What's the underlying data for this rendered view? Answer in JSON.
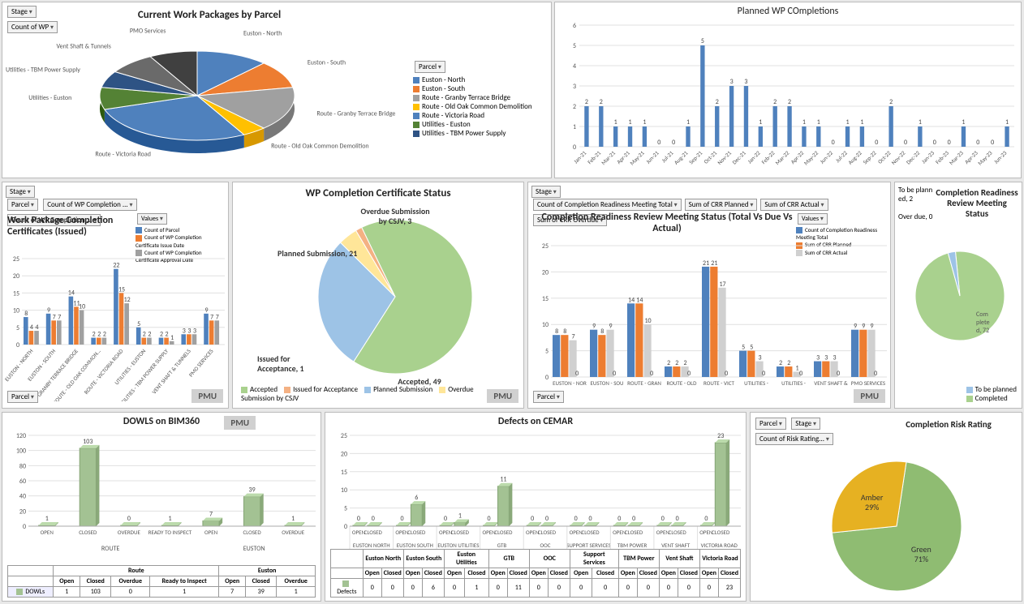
{
  "filters": {
    "stage": "Stage",
    "count_wp": "Count of  WP",
    "parcel": "Parcel",
    "values": "Values",
    "count_compl": "Count of  WP Completion ...",
    "count_risk": "Count of  Risk Rating..."
  },
  "colors": {
    "blue": "#4f81bd",
    "orange": "#ed7d31",
    "gray": "#808080",
    "yellow": "#ffc000",
    "darkblue": "#2e5384",
    "green": "#70ad47",
    "teal": "#255e91",
    "ltgreen": "#a3c293",
    "pie_green": "#a9d18e",
    "pie_blue": "#9dc3e6",
    "pie_orange": "#f4b183",
    "pie_yellow": "#ffe699",
    "amber": "#e6b122",
    "risk_green": "#8fbc72"
  },
  "parcel_pie": {
    "title": "Current Work Packages by Parcel",
    "slices": [
      {
        "label": "Euston - North",
        "color": "#4f81bd",
        "value": 12
      },
      {
        "label": "Euston - South",
        "color": "#ed7d31",
        "value": 10
      },
      {
        "label": "Route - Granby Terrace Bridge",
        "color": "#a0a0a0",
        "value": 16
      },
      {
        "label": "Route - Old Oak Common Demolition",
        "color": "#ffc000",
        "value": 4
      },
      {
        "label": "Route - Victoria Road",
        "color": "#4f81bd",
        "value": 28
      },
      {
        "label": "Utilities - Euston",
        "color": "#548235",
        "value": 8
      },
      {
        "label": "Utilities - TBM Power Supply",
        "color": "#2e5384",
        "value": 6
      },
      {
        "label": "Vent Shaft & Tunnels",
        "color": "#6a6a6a",
        "value": 8
      },
      {
        "label": "PMO Services",
        "color": "#404040",
        "value": 8
      }
    ]
  },
  "planned_wp": {
    "title": "Planned WP COmpletions",
    "ylim": [
      0,
      6
    ],
    "ytick": 1,
    "x": [
      "Jan-21",
      "Feb-21",
      "Mar-21",
      "Apr-21",
      "May-21",
      "Jun-21",
      "Jul-21",
      "Aug-21",
      "Sep-21",
      "Oct-21",
      "Nov-21",
      "Dec-21",
      "Jan-22",
      "Feb-22",
      "Mar-22",
      "Apr-22",
      "May-22",
      "Jun-22",
      "Jul-22",
      "Aug-22",
      "Sep-22",
      "Oct-22",
      "Nov-22",
      "Dec-22",
      "Jan-23",
      "Feb-23",
      "Mar-23",
      "Apr-23",
      "May-23",
      "Jun-23"
    ],
    "y": [
      2,
      2,
      1,
      1,
      1,
      0,
      0,
      1,
      5,
      2,
      3,
      3,
      1,
      2,
      2,
      1,
      1,
      0,
      1,
      1,
      0,
      2,
      0,
      1,
      0,
      0,
      1,
      0,
      0,
      1
    ]
  },
  "wpcc_issued": {
    "title": "Work Package Completion Certificates (Issued)",
    "legend": [
      "Count of Parcel",
      "Count of WP Completion Certificate Issue Date",
      "Count of WP Completion Certificate  Approval Date"
    ],
    "legend_colors": [
      "#4f81bd",
      "#ed7d31",
      "#a0a0a0"
    ],
    "ylim": [
      0,
      25
    ],
    "ytick": 5,
    "categories": [
      "EUSTON - NORTH",
      "EUSTON - SOUTH",
      "ROUTE - GRANBY TERRACE BRIDGE",
      "ROUTE - OLD OAK COMMON…",
      "ROUTE - VICTORIA ROAD",
      "UTILITIES - EUSTON",
      "UTILITIES - TBM POWER SUPPLY",
      "VENT SHAFT & TUNNELS",
      "PMO SERVICES"
    ],
    "series": [
      [
        8,
        4,
        4
      ],
      [
        9,
        7,
        7
      ],
      [
        14,
        11,
        10
      ],
      [
        2,
        2,
        2
      ],
      [
        22,
        15,
        12
      ],
      [
        5,
        2,
        2
      ],
      [
        2,
        2,
        1
      ],
      [
        3,
        3,
        3
      ],
      [
        9,
        7,
        7
      ]
    ]
  },
  "wp_cert_status": {
    "title": "WP Completion Certificate Status",
    "legend": [
      "Accepted",
      "Issued for Acceptance",
      "Planned Submission",
      "Overdue Submission by CSJV"
    ],
    "legend_colors": [
      "#a9d18e",
      "#f4b183",
      "#9dc3e6",
      "#ffe699"
    ],
    "slices": [
      {
        "label": "Accepted, 49",
        "value": 49,
        "color": "#a9d18e"
      },
      {
        "label": "Planned Submission, 21",
        "value": 21,
        "color": "#9dc3e6"
      },
      {
        "label": "Overdue Submission by CSJV, 3",
        "value": 3,
        "color": "#ffe699"
      },
      {
        "label": "Issued for Acceptance, 1",
        "value": 1,
        "color": "#f4b183"
      }
    ]
  },
  "crr_meeting": {
    "title": "Completion Readiness Review Meeting Status (Total Vs Due Vs Actual)",
    "filters": [
      "Count of  Completion Readiness Meeting Total",
      "Sum of  CRR Planned",
      "Sum of  CRR Actual",
      "Sum of  CRR Overdue"
    ],
    "legend": [
      "Count of Completion Readiness Meeting Total",
      "Sum of CRR Planned",
      "Sum of CRR Actual"
    ],
    "legend_colors": [
      "#4f81bd",
      "#ed7d31",
      "#d0d0d0"
    ],
    "ylim": [
      0,
      25
    ],
    "ytick": 5,
    "categories": [
      "EUSTON - NORTH",
      "EUSTON - SOUTH",
      "ROUTE - GRANBY TERRACE BRIDGE",
      "ROUTE - OLD OAK COMMON DEMOLITION",
      "ROUTE - VICTORIA ROAD",
      "UTILITIES - EUSTON",
      "UTILITIES - TBM POWER SUPPLY",
      "VENT SHAFT & TUNNELS",
      "PMO SERVICES"
    ],
    "series": [
      [
        8,
        8,
        7,
        0
      ],
      [
        9,
        8,
        9,
        0
      ],
      [
        14,
        14,
        10,
        0
      ],
      [
        2,
        2,
        2,
        0
      ],
      [
        21,
        21,
        17,
        0
      ],
      [
        5,
        5,
        3,
        0
      ],
      [
        2,
        2,
        1,
        0
      ],
      [
        3,
        3,
        3,
        0
      ],
      [
        9,
        9,
        9,
        0
      ]
    ]
  },
  "crr_pie": {
    "title": "Completion Readiness Review Meeting Status",
    "slices": [
      {
        "label": "Completed, 72",
        "value": 72,
        "color": "#a9d18e"
      },
      {
        "label": "To be planned, 2",
        "value": 2,
        "color": "#9dc3e6"
      },
      {
        "label": "Overdue, 0",
        "value": 0,
        "color": "#f4b183"
      }
    ],
    "legend": [
      "To be planned",
      "Completed"
    ]
  },
  "dowls": {
    "title": "DOWLS on BIM360",
    "ylim": [
      0,
      120
    ],
    "ytick": 20,
    "groups": [
      "ROUTE",
      "EUSTON"
    ],
    "cats": [
      [
        "OPEN",
        "CLOSED",
        "OVERDUE",
        "READY TO INSPECT"
      ],
      [
        "OPEN",
        "CLOSED",
        "OVERDUE"
      ]
    ],
    "values": [
      [
        1,
        103,
        0,
        1
      ],
      [
        7,
        39,
        1
      ]
    ],
    "table_head": [
      [
        "Route",
        "",
        "",
        ""
      ],
      [
        "Euston",
        "",
        ""
      ]
    ],
    "table_cols": [
      [
        "Open",
        "Closed",
        "Overdue",
        "Ready to Inspect"
      ],
      [
        "Open",
        "Closed",
        "Overdue"
      ]
    ],
    "row_label": "DOWLs"
  },
  "defects": {
    "title": "Defects on CEMAR",
    "ylim": [
      0,
      25
    ],
    "ytick": 5,
    "groups": [
      "EUSTON NORTH",
      "EUSTON SOUTH",
      "EUSTON UTILITIES",
      "GTB",
      "OOC",
      "SUPPORT SERVICES",
      "TBM POWER",
      "VENT SHAFT",
      "VICTORIA ROAD"
    ],
    "cats": [
      "OPEN",
      "CLOSED"
    ],
    "values": [
      [
        0,
        0
      ],
      [
        0,
        6
      ],
      [
        0,
        1
      ],
      [
        0,
        11
      ],
      [
        0,
        0
      ],
      [
        0,
        0
      ],
      [
        0,
        0
      ],
      [
        0,
        0
      ],
      [
        0,
        23
      ]
    ],
    "row_label": "Defects",
    "table_long": [
      "Euston North",
      "Euston South",
      "Euston Utilities",
      "GTB",
      "OOC",
      "Support Services",
      "TBM Power",
      "Vent Shaft",
      "Victoria Road"
    ]
  },
  "risk": {
    "title": "Completion Risk Rating",
    "slices": [
      {
        "label": "Green\n71%",
        "value": 71,
        "color": "#8fbc72"
      },
      {
        "label": "Amber\n29%",
        "value": 29,
        "color": "#e6b122"
      }
    ]
  },
  "badge": "PMU"
}
